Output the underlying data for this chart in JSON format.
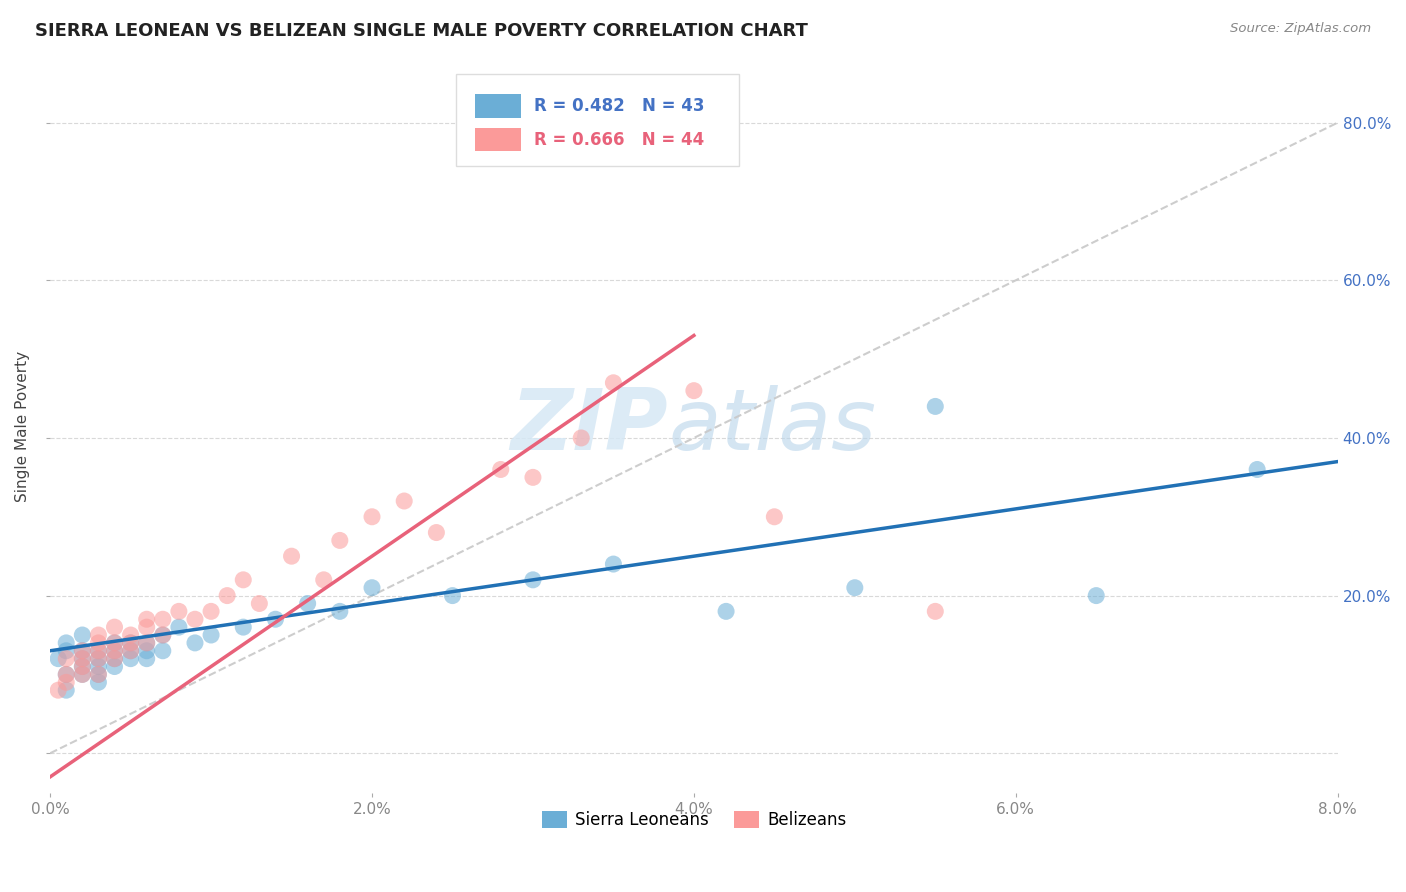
{
  "title": "SIERRA LEONEAN VS BELIZEAN SINGLE MALE POVERTY CORRELATION CHART",
  "source": "Source: ZipAtlas.com",
  "xlabel": "",
  "ylabel": "Single Male Poverty",
  "xlim": [
    0.0,
    0.08
  ],
  "ylim": [
    -0.05,
    0.88
  ],
  "xticks": [
    0.0,
    0.02,
    0.04,
    0.06,
    0.08
  ],
  "xtick_labels": [
    "0.0%",
    "2.0%",
    "4.0%",
    "6.0%",
    "8.0%"
  ],
  "yticks": [
    0.0,
    0.2,
    0.4,
    0.6,
    0.8
  ],
  "ytick_labels": [
    "",
    "20.0%",
    "40.0%",
    "60.0%",
    "80.0%"
  ],
  "sierra_R": 0.482,
  "sierra_N": 43,
  "belize_R": 0.666,
  "belize_N": 44,
  "sierra_color": "#6baed6",
  "belize_color": "#fb9a99",
  "sierra_line_color": "#2171b5",
  "belize_line_color": "#e8627a",
  "ref_line_color": "#c8c8c8",
  "background_color": "#ffffff",
  "grid_color": "#d0d0d0",
  "watermark_color": "#d6e8f5",
  "tick_color_blue": "#4472c4",
  "tick_color_gray": "#888888",
  "sierra_x": [
    0.0005,
    0.001,
    0.001,
    0.001,
    0.001,
    0.002,
    0.002,
    0.002,
    0.002,
    0.002,
    0.003,
    0.003,
    0.003,
    0.003,
    0.003,
    0.004,
    0.004,
    0.004,
    0.004,
    0.005,
    0.005,
    0.005,
    0.006,
    0.006,
    0.006,
    0.007,
    0.007,
    0.008,
    0.009,
    0.01,
    0.012,
    0.014,
    0.016,
    0.018,
    0.02,
    0.025,
    0.03,
    0.035,
    0.042,
    0.05,
    0.055,
    0.065,
    0.075
  ],
  "sierra_y": [
    0.12,
    0.1,
    0.13,
    0.08,
    0.14,
    0.11,
    0.13,
    0.12,
    0.1,
    0.15,
    0.12,
    0.1,
    0.13,
    0.09,
    0.11,
    0.13,
    0.12,
    0.14,
    0.11,
    0.14,
    0.13,
    0.12,
    0.14,
    0.13,
    0.12,
    0.15,
    0.13,
    0.16,
    0.14,
    0.15,
    0.16,
    0.17,
    0.19,
    0.18,
    0.21,
    0.2,
    0.22,
    0.24,
    0.18,
    0.21,
    0.44,
    0.2,
    0.36
  ],
  "belize_x": [
    0.0005,
    0.001,
    0.001,
    0.001,
    0.002,
    0.002,
    0.002,
    0.002,
    0.003,
    0.003,
    0.003,
    0.003,
    0.003,
    0.004,
    0.004,
    0.004,
    0.004,
    0.005,
    0.005,
    0.005,
    0.006,
    0.006,
    0.006,
    0.007,
    0.007,
    0.008,
    0.009,
    0.01,
    0.011,
    0.012,
    0.013,
    0.015,
    0.017,
    0.018,
    0.02,
    0.022,
    0.024,
    0.028,
    0.03,
    0.033,
    0.035,
    0.04,
    0.045,
    0.055
  ],
  "belize_y": [
    0.08,
    0.09,
    0.12,
    0.1,
    0.1,
    0.13,
    0.12,
    0.11,
    0.12,
    0.14,
    0.1,
    0.13,
    0.15,
    0.14,
    0.12,
    0.16,
    0.13,
    0.13,
    0.15,
    0.14,
    0.16,
    0.17,
    0.14,
    0.17,
    0.15,
    0.18,
    0.17,
    0.18,
    0.2,
    0.22,
    0.19,
    0.25,
    0.22,
    0.27,
    0.3,
    0.32,
    0.28,
    0.36,
    0.35,
    0.4,
    0.47,
    0.46,
    0.3,
    0.18
  ],
  "sierra_line_x0": 0.0,
  "sierra_line_y0": 0.13,
  "sierra_line_x1": 0.08,
  "sierra_line_y1": 0.37,
  "belize_line_x0": 0.0,
  "belize_line_y0": -0.03,
  "belize_line_x1": 0.04,
  "belize_line_y1": 0.53
}
